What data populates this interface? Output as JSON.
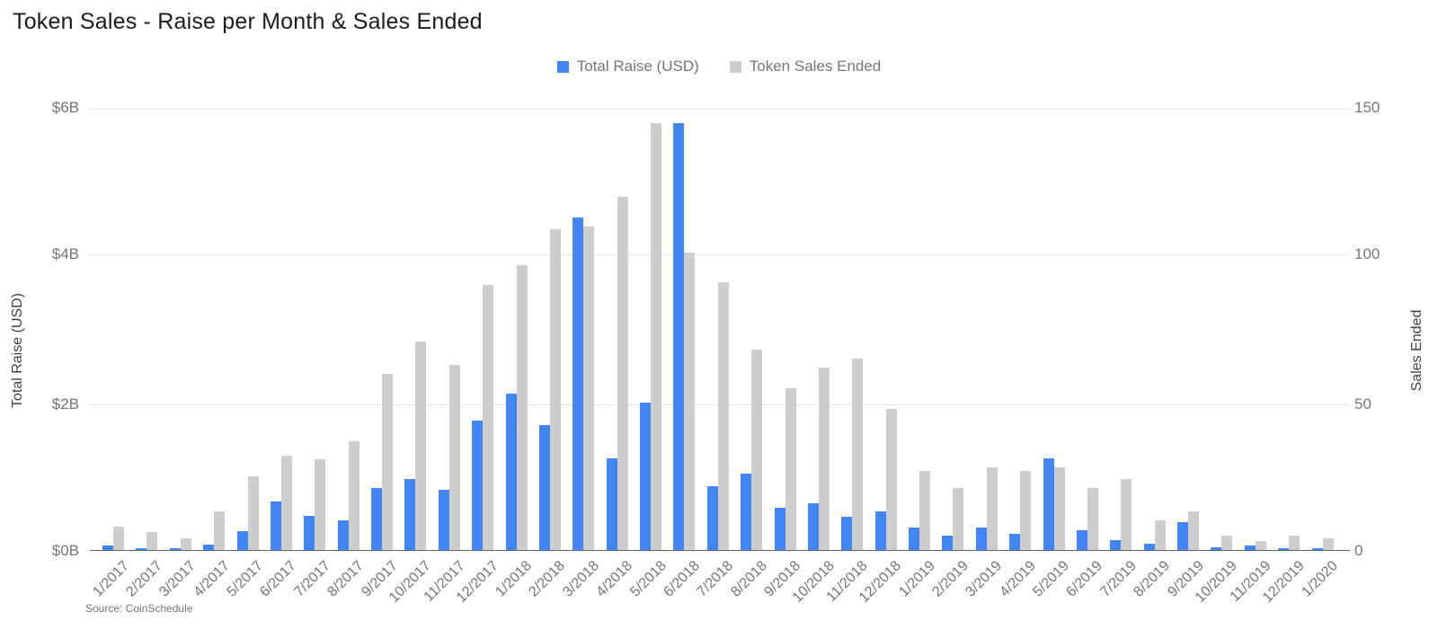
{
  "chart_data": {
    "type": "bar",
    "title": "Token Sales - Raise per Month & Sales Ended",
    "source": "Source: CoinSchedule",
    "legend_position": "top",
    "grid": true,
    "categories": [
      "1/2017",
      "2/2017",
      "3/2017",
      "4/2017",
      "5/2017",
      "6/2017",
      "7/2017",
      "8/2017",
      "9/2017",
      "10/2017",
      "11/2017",
      "12/2017",
      "1/2018",
      "2/2018",
      "3/2018",
      "4/2018",
      "5/2018",
      "6/2018",
      "7/2018",
      "8/2018",
      "9/2018",
      "10/2018",
      "11/2018",
      "12/2018",
      "1/2019",
      "2/2019",
      "3/2019",
      "4/2019",
      "5/2019",
      "6/2019",
      "7/2019",
      "8/2019",
      "9/2019",
      "10/2019",
      "11/2019",
      "12/2019",
      "1/2020"
    ],
    "series": [
      {
        "name": "Total Raise (USD)",
        "axis": "left",
        "unit": "billion USD",
        "color": "#4285f4",
        "values": [
          0.06,
          0.02,
          0.02,
          0.07,
          0.26,
          0.66,
          0.47,
          0.4,
          0.84,
          0.97,
          0.82,
          1.76,
          2.13,
          1.7,
          4.52,
          1.25,
          2.0,
          5.8,
          0.87,
          1.04,
          0.58,
          0.64,
          0.45,
          0.53,
          0.3,
          0.2,
          0.3,
          0.22,
          1.25,
          0.27,
          0.13,
          0.08,
          0.38,
          0.04,
          0.06,
          0.03,
          0.02
        ]
      },
      {
        "name": "Token Sales Ended",
        "axis": "right",
        "unit": "count",
        "color": "#cdcdcd",
        "values": [
          8,
          6,
          4,
          13,
          25,
          32,
          31,
          37,
          60,
          71,
          63,
          90,
          97,
          109,
          110,
          120,
          145,
          101,
          91,
          68,
          55,
          62,
          65,
          48,
          27,
          21,
          28,
          27,
          28,
          21,
          24,
          10,
          13,
          5,
          3,
          5,
          4
        ]
      }
    ],
    "left_axis": {
      "title": "Total Raise (USD)",
      "min": 0,
      "max": 6,
      "ticks": [
        "$6B",
        "$4B",
        "$2B",
        "$0B"
      ]
    },
    "right_axis": {
      "title": "Sales Ended",
      "min": 0,
      "max": 150,
      "ticks": [
        "150",
        "100",
        "50",
        "0"
      ]
    }
  }
}
